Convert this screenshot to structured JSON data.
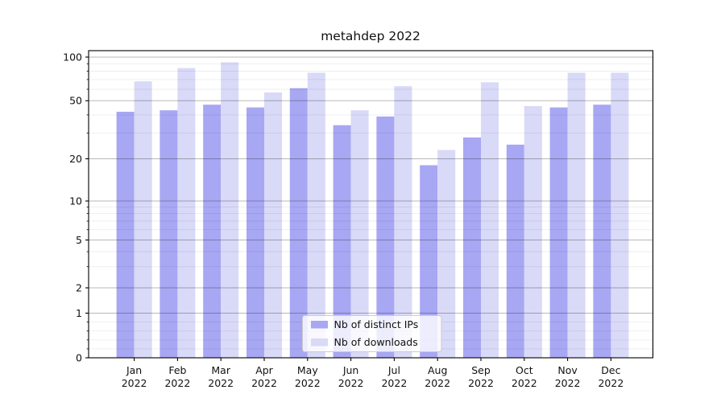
{
  "chart_data": {
    "type": "bar",
    "title": "metahdep 2022",
    "categories": [
      "Jan",
      "Feb",
      "Mar",
      "Apr",
      "May",
      "Jun",
      "Jul",
      "Aug",
      "Sep",
      "Oct",
      "Nov",
      "Dec"
    ],
    "year_label": "2022",
    "series": [
      {
        "name": "Nb of distinct IPs",
        "color": "#a7a7f3",
        "values": [
          42,
          43,
          47,
          45,
          61,
          34,
          39,
          18,
          28,
          25,
          45,
          47
        ]
      },
      {
        "name": "Nb of downloads",
        "color": "#d9d9f8",
        "values": [
          68,
          84,
          92,
          57,
          78,
          43,
          63,
          23,
          67,
          46,
          78,
          78
        ]
      }
    ],
    "y_axis": {
      "scale": "symlog",
      "major_ticks": [
        0,
        1,
        2,
        5,
        10,
        20,
        50,
        100
      ],
      "minor_ticks": [
        0.2,
        0.4,
        0.6,
        0.8,
        3,
        4,
        6,
        7,
        8,
        9,
        30,
        40,
        60,
        70,
        80,
        90
      ],
      "ylim": [
        0,
        110
      ]
    },
    "legend": {
      "position": "lower center",
      "entries": [
        "Nb of distinct IPs",
        "Nb of downloads"
      ]
    },
    "grid": "on",
    "colors": {
      "major_grid": "rgba(0,0,0,0.28)",
      "minor_grid": "rgba(0,0,0,0.07)",
      "spine": "#000000",
      "legend_border": "#cccccc",
      "legend_bg": "rgba(255,255,255,0.8)"
    }
  }
}
